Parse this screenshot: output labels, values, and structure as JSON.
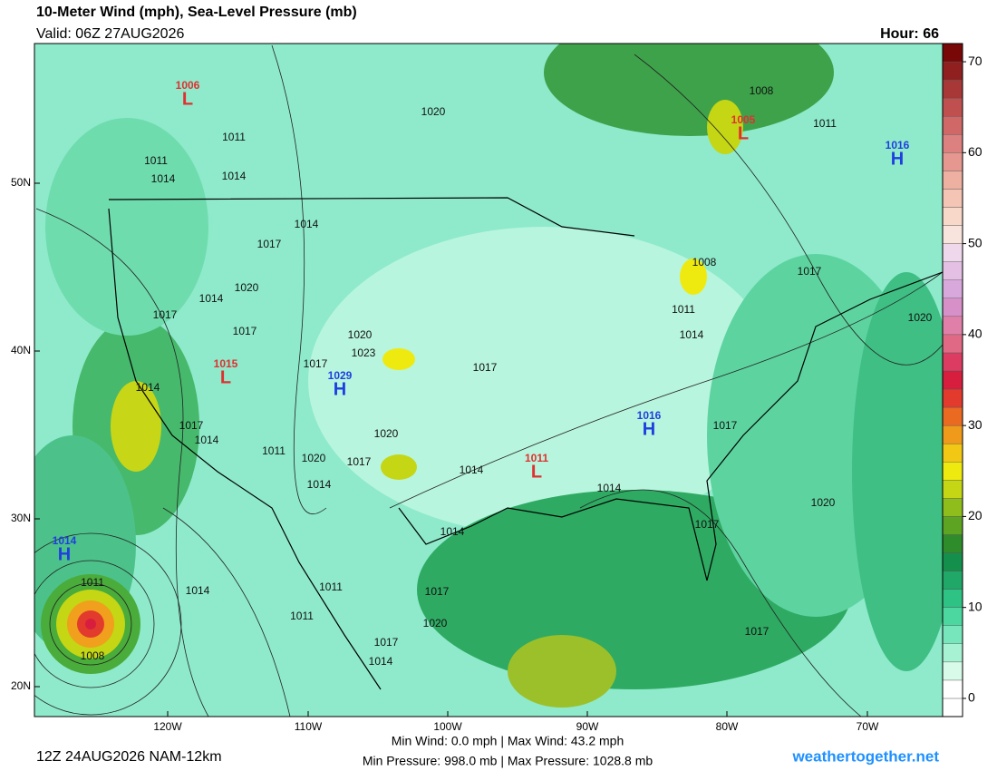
{
  "header": {
    "title": "10-Meter Wind (mph), Sea-Level Pressure (mb)",
    "valid": "Valid: 06Z 27AUG2026",
    "hour": "Hour: 66"
  },
  "map": {
    "lat_labels": [
      "50N",
      "40N",
      "30N",
      "20N"
    ],
    "lon_labels": [
      "120W",
      "110W",
      "100W",
      "90W",
      "80W",
      "70W"
    ],
    "centers": [
      {
        "kind": "L",
        "pressure": "1006"
      },
      {
        "kind": "L",
        "pressure": "1005"
      },
      {
        "kind": "H",
        "pressure": "1016"
      },
      {
        "kind": "L",
        "pressure": "1015"
      },
      {
        "kind": "H",
        "pressure": "1029"
      },
      {
        "kind": "H",
        "pressure": "1016"
      },
      {
        "kind": "L",
        "pressure": "1011"
      },
      {
        "kind": "H",
        "pressure": "1014"
      }
    ],
    "isobar_labels": [
      "1011",
      "1011",
      "1014",
      "1014",
      "1020",
      "1008",
      "1011",
      "1014",
      "1017",
      "1020",
      "1014",
      "1017",
      "1017",
      "1020",
      "1023",
      "1017",
      "1017",
      "1014",
      "1017",
      "1014",
      "1011",
      "1020",
      "1020",
      "1017",
      "1014",
      "1014",
      "1014",
      "1014",
      "1008",
      "1011",
      "1014",
      "1017",
      "1020",
      "1017",
      "1020",
      "1017",
      "1014",
      "1011",
      "1008",
      "1011",
      "1017",
      "1020",
      "1017",
      "1014",
      "1017",
      "1011"
    ]
  },
  "colorbar": {
    "range": [
      -2,
      72
    ],
    "ticks": [
      0,
      10,
      20,
      30,
      40,
      50,
      60,
      70
    ],
    "colors": [
      "#ffffff",
      "#ffffff",
      "#d8fbe9",
      "#a8f2d4",
      "#78e6bc",
      "#4cd6a0",
      "#2ec285",
      "#1fa868",
      "#15904c",
      "#2f8c2a",
      "#5ea423",
      "#8fbe1c",
      "#c4d614",
      "#eeea10",
      "#f2c814",
      "#f09a1c",
      "#ea6a22",
      "#e23a2c",
      "#d81e3e",
      "#dc3c62",
      "#e06a86",
      "#e080a8",
      "#d890c8",
      "#d8a8dc",
      "#e4c0e4",
      "#f0d8ec",
      "#f8e4dc",
      "#f8d8c8",
      "#f4c4b4",
      "#eeb0a0",
      "#e69890",
      "#dc8080",
      "#d06868",
      "#c05050",
      "#a83838",
      "#902020",
      "#780808"
    ]
  },
  "footer": {
    "run": "12Z 24AUG2026 NAM-12km",
    "stats": [
      "Min Wind:  0.0 mph | Max Wind: 43.2 mph",
      "Min Pressure: 998.0 mb | Max Pressure: 1028.8 mb"
    ],
    "site": "weathertogether.net"
  }
}
